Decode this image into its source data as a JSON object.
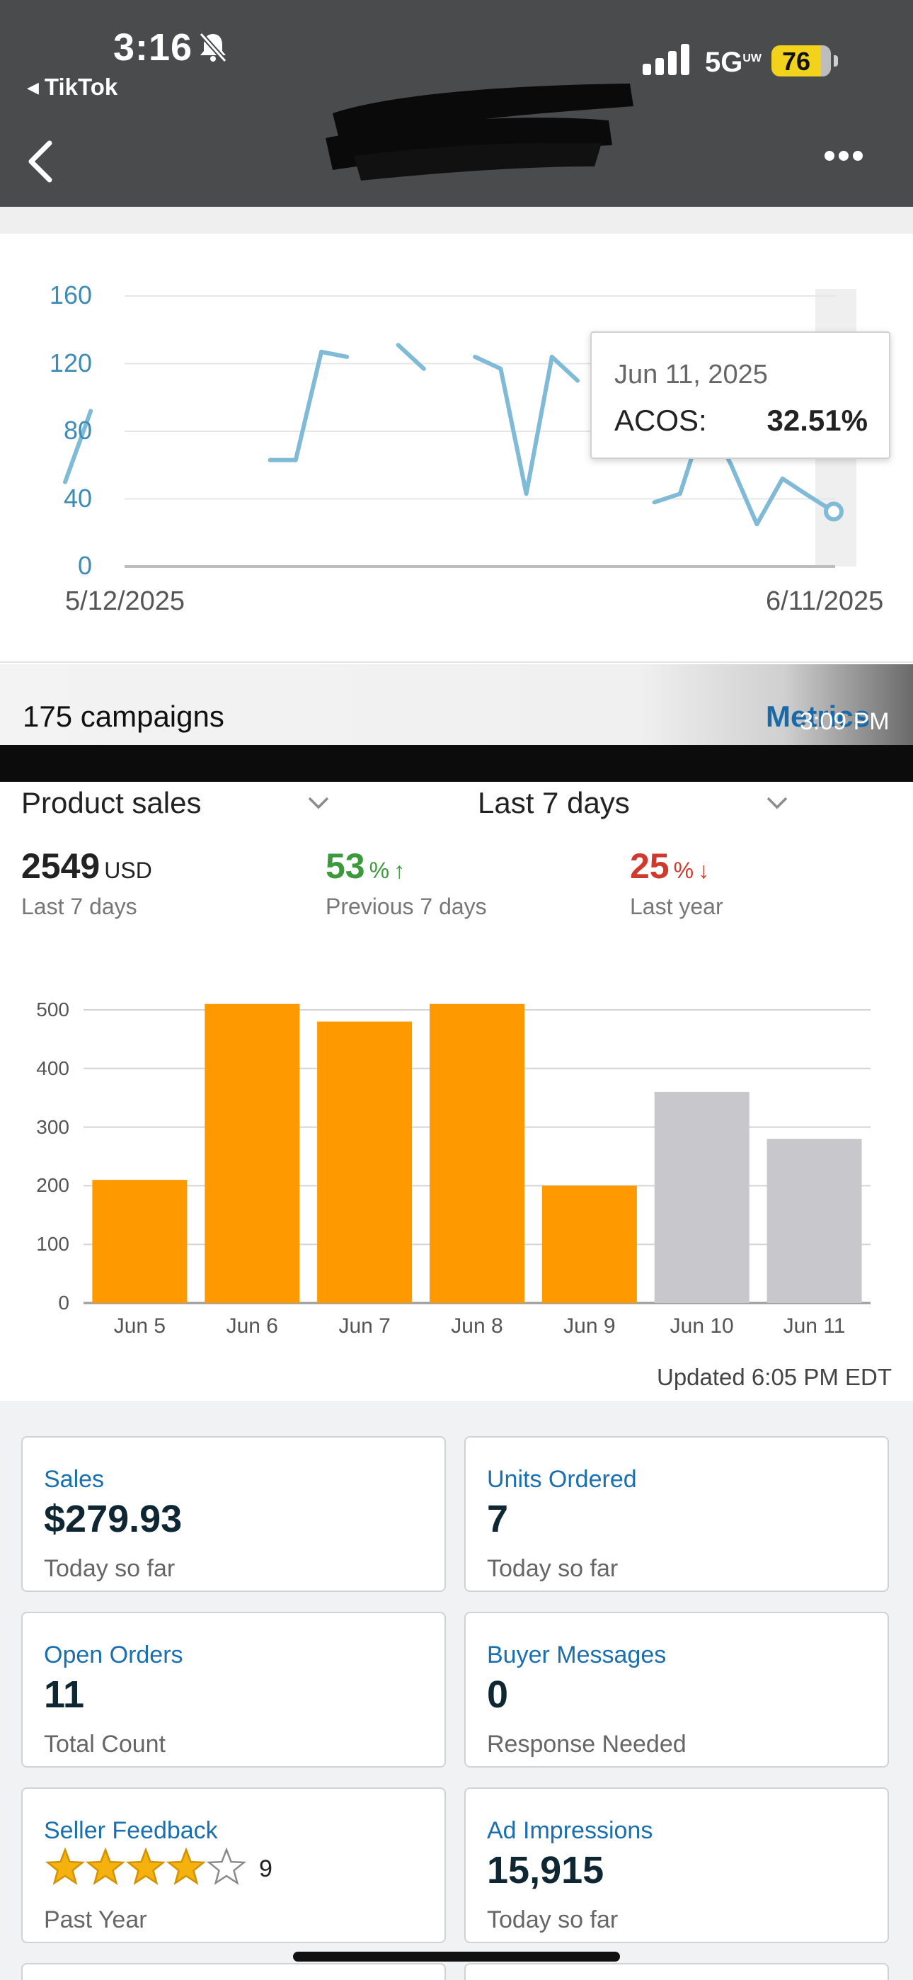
{
  "status_bar": {
    "time": "3:16",
    "back_app": "TikTok",
    "network": "5G",
    "network_sup": "UW",
    "battery": "76"
  },
  "line_chart": {
    "y_ticks": [
      "160",
      "120",
      "80",
      "40",
      "0"
    ],
    "x_start": "5/12/2025",
    "x_end": "6/11/2025",
    "tooltip": {
      "date": "Jun 11, 2025",
      "label": "ACOS:",
      "value": "32.51%"
    }
  },
  "campaign_bar": {
    "count_label": "175 campaigns",
    "metrics_label": "Metrics",
    "timestamp": "3:09 PM"
  },
  "sales_section": {
    "metric_dropdown": "Product sales",
    "range_dropdown": "Last 7 days",
    "kpis": [
      {
        "value": "2549",
        "unit": "USD",
        "arrow": "",
        "label": "Last 7 days",
        "color": "#222222"
      },
      {
        "value": "53",
        "unit": "%",
        "arrow": "↑",
        "label": "Previous 7 days",
        "color": "#3c9a3c"
      },
      {
        "value": "25",
        "unit": "%",
        "arrow": "↓",
        "label": "Last year",
        "color": "#d03a2e"
      }
    ],
    "updated": "Updated 6:05 PM EDT"
  },
  "chart_data": [
    {
      "type": "line",
      "title": "",
      "xlabel": "",
      "ylabel": "",
      "ylim": [
        0,
        160
      ],
      "x_range": [
        "5/12/2025",
        "6/11/2025"
      ],
      "grid": true,
      "series": [
        {
          "values": [
            50,
            92,
            null,
            null,
            null,
            null,
            null,
            null,
            63,
            63,
            127,
            124,
            null,
            131,
            117,
            null,
            124,
            117,
            43,
            124,
            110,
            null,
            null,
            38,
            43,
            90,
            60,
            25,
            52,
            42,
            32.51
          ]
        }
      ]
    },
    {
      "type": "bar",
      "title": "",
      "categories": [
        "Jun 5",
        "Jun 6",
        "Jun 7",
        "Jun 8",
        "Jun 9",
        "Jun 10",
        "Jun 11"
      ],
      "values": [
        210,
        510,
        480,
        510,
        200,
        360,
        280
      ],
      "ylim": [
        0,
        500
      ],
      "y_ticks": [
        "500",
        "400",
        "300",
        "200",
        "100",
        "0"
      ],
      "grid": true,
      "bar_colors": [
        "#ff9900",
        "#ff9900",
        "#ff9900",
        "#ff9900",
        "#ff9900",
        "#c7c7cc",
        "#c7c7cc"
      ]
    }
  ],
  "cards": [
    {
      "title": "Sales",
      "value": "$279.93",
      "sub": "Today so far"
    },
    {
      "title": "Units Ordered",
      "value": "7",
      "sub": "Today so far"
    },
    {
      "title": "Open Orders",
      "value": "11",
      "sub": "Total Count"
    },
    {
      "title": "Buyer Messages",
      "value": "0",
      "sub": "Response Needed"
    },
    {
      "title": "Seller Feedback",
      "stars": 4,
      "count": "9",
      "sub": "Past Year"
    },
    {
      "title": "Ad Impressions",
      "value": "15,915",
      "sub": "Today so far"
    }
  ],
  "colors": {
    "accent_link": "#1a6fb0",
    "line": "#7fbad6",
    "bar_active": "#ff9900",
    "bar_projected": "#c7c7cc",
    "star": "#f5b10d"
  }
}
